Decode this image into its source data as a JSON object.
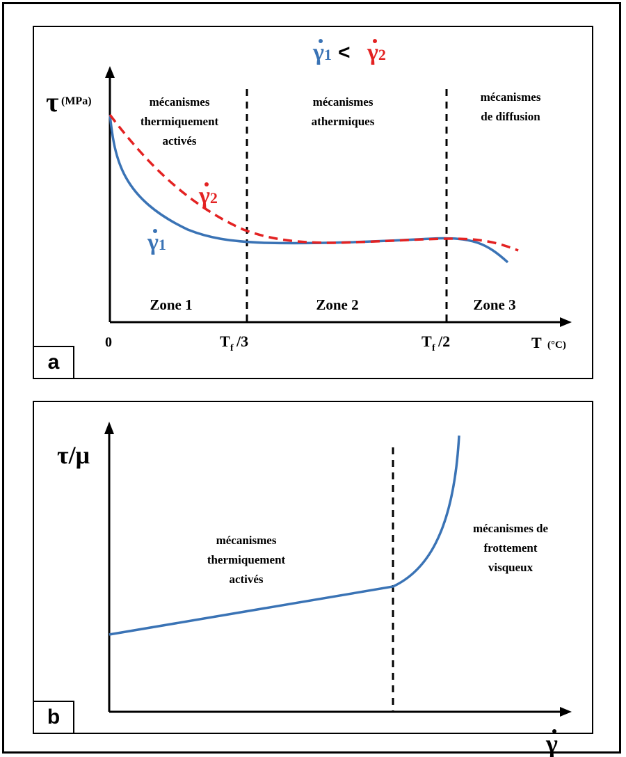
{
  "panel_a": {
    "tag": "a",
    "relation": {
      "left": "γ̇₁",
      "op": "<",
      "right": "γ̇₂",
      "left_color": "#3a73b5",
      "right_color": "#e32222"
    },
    "y_axis": {
      "symbol": "τ",
      "unit": "(MPa)"
    },
    "x_axis": {
      "symbol": "T",
      "unit": "(°C)"
    },
    "ticks": [
      "0",
      "T",
      "/3",
      "T",
      "/2"
    ],
    "tick_sub": "f",
    "mechanisms": [
      [
        "mécanismes",
        "thermiquement",
        "activés"
      ],
      [
        "mécanismes",
        "athermiques"
      ],
      [
        "mécanismes",
        "de diffusion"
      ]
    ],
    "zones": [
      "Zone 1",
      "Zone 2",
      "Zone 3"
    ],
    "curve_labels": {
      "gamma1": "γ̇₁",
      "gamma2": "γ̇₂"
    }
  },
  "panel_b": {
    "tag": "b",
    "y_axis": {
      "symbol": "τ/μ"
    },
    "x_axis": {
      "symbol": "γ̇"
    },
    "mechanisms": [
      [
        "mécanismes",
        "thermiquement",
        "activés"
      ],
      [
        "mécanismes de",
        "frottement",
        "visqueux"
      ]
    ]
  },
  "colors": {
    "blue": "#3a73b5",
    "red": "#e32222",
    "black": "#000000"
  }
}
